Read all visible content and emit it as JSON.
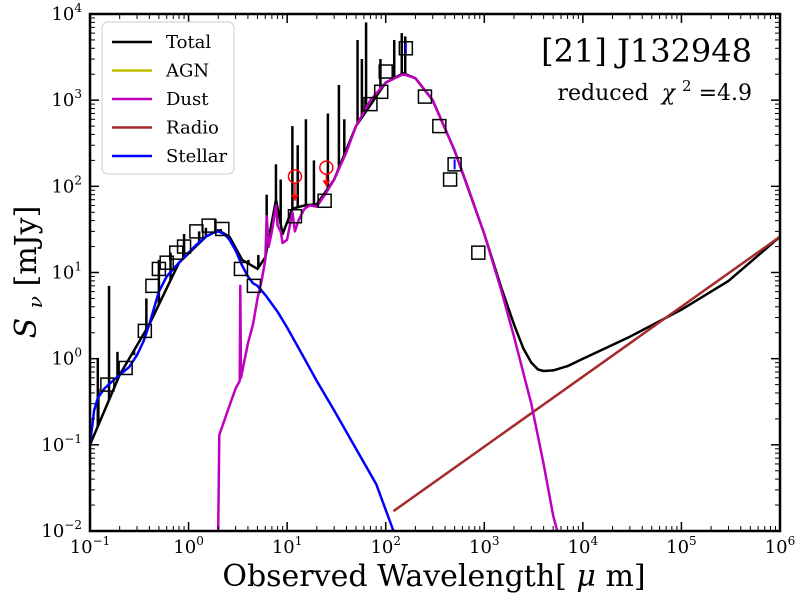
{
  "chart_data": {
    "type": "line",
    "scale": "log-log",
    "title": "[21] J132948",
    "annotation": {
      "prefix": "reduced",
      "chi": "χ",
      "power": "2",
      "value": "=4.9"
    },
    "xlabel": {
      "text": "Observed Wavelength[",
      "unit": "μ",
      "unit_rest": "m]"
    },
    "ylabel": {
      "symbol": "S",
      "sub": "ν",
      "unit": "[mJy]"
    },
    "xlim": [
      0.1,
      1000000
    ],
    "ylim": [
      0.01,
      10000
    ],
    "x_ticks": [
      {
        "value": 0.1,
        "base": "10",
        "exp": "−1"
      },
      {
        "value": 1,
        "base": "10",
        "exp": "0"
      },
      {
        "value": 10,
        "base": "10",
        "exp": "1"
      },
      {
        "value": 100,
        "base": "10",
        "exp": "2"
      },
      {
        "value": 1000,
        "base": "10",
        "exp": "3"
      },
      {
        "value": 10000,
        "base": "10",
        "exp": "4"
      },
      {
        "value": 100000,
        "base": "10",
        "exp": "5"
      },
      {
        "value": 1000000,
        "base": "10",
        "exp": "6"
      }
    ],
    "y_ticks": [
      {
        "value": 0.01,
        "base": "10",
        "exp": "−2"
      },
      {
        "value": 0.1,
        "base": "10",
        "exp": "−1"
      },
      {
        "value": 1,
        "base": "10",
        "exp": "0"
      },
      {
        "value": 10,
        "base": "10",
        "exp": "1"
      },
      {
        "value": 100,
        "base": "10",
        "exp": "2"
      },
      {
        "value": 1000,
        "base": "10",
        "exp": "3"
      },
      {
        "value": 10000,
        "base": "10",
        "exp": "4"
      }
    ],
    "legend": {
      "position": "top-left",
      "entries": [
        {
          "label": "Total",
          "color": "#000000"
        },
        {
          "label": "AGN",
          "color": "#bfbf00"
        },
        {
          "label": "Dust",
          "color": "#bf00bf"
        },
        {
          "label": "Radio",
          "color": "#a52a2a"
        },
        {
          "label": "Stellar",
          "color": "#0000ff"
        }
      ]
    },
    "series": [
      {
        "name": "Stellar",
        "color": "#0000ff",
        "points": [
          [
            0.1,
            0.1
          ],
          [
            0.11,
            0.25
          ],
          [
            0.12,
            0.35
          ],
          [
            0.14,
            0.45
          ],
          [
            0.17,
            0.55
          ],
          [
            0.2,
            0.65
          ],
          [
            0.25,
            0.8
          ],
          [
            0.3,
            1.1
          ],
          [
            0.35,
            1.6
          ],
          [
            0.4,
            2.5
          ],
          [
            0.45,
            4
          ],
          [
            0.5,
            6
          ],
          [
            0.6,
            9
          ],
          [
            0.7,
            11
          ],
          [
            0.8,
            13
          ],
          [
            1.0,
            17
          ],
          [
            1.2,
            21
          ],
          [
            1.5,
            26
          ],
          [
            1.8,
            29
          ],
          [
            2.0,
            30
          ],
          [
            2.3,
            28
          ],
          [
            2.6,
            24
          ],
          [
            3.0,
            18
          ],
          [
            3.5,
            12
          ],
          [
            4.0,
            9
          ],
          [
            4.5,
            7.5
          ],
          [
            5.0,
            7
          ],
          [
            6.0,
            5.5
          ],
          [
            8.0,
            3.5
          ],
          [
            10.0,
            2.3
          ],
          [
            15.0,
            1.0
          ],
          [
            20.0,
            0.55
          ],
          [
            30.0,
            0.25
          ],
          [
            50.0,
            0.09
          ],
          [
            80.0,
            0.035
          ],
          [
            120.0,
            0.01
          ]
        ]
      },
      {
        "name": "Dust",
        "color": "#bf00bf",
        "points": [
          [
            2.0,
            0.01
          ],
          [
            2.05,
            0.13
          ],
          [
            2.5,
            0.25
          ],
          [
            3.0,
            0.45
          ],
          [
            3.3,
            0.55
          ],
          [
            3.35,
            7
          ],
          [
            3.4,
            0.6
          ],
          [
            4.0,
            1.5
          ],
          [
            4.5,
            2.5
          ],
          [
            5.0,
            5
          ],
          [
            5.5,
            8
          ],
          [
            6.0,
            14
          ],
          [
            6.2,
            45
          ],
          [
            6.5,
            20
          ],
          [
            7.0,
            30
          ],
          [
            7.7,
            60
          ],
          [
            8.0,
            35
          ],
          [
            8.6,
            30
          ],
          [
            9.0,
            22
          ],
          [
            10.0,
            24
          ],
          [
            11.3,
            50
          ],
          [
            12.0,
            30
          ],
          [
            13.0,
            40
          ],
          [
            15.0,
            55
          ],
          [
            17.0,
            60
          ],
          [
            20.0,
            58
          ],
          [
            25.0,
            85
          ],
          [
            30.0,
            120
          ],
          [
            40.0,
            250
          ],
          [
            50.0,
            500
          ],
          [
            70.0,
            1000
          ],
          [
            100.0,
            1600
          ],
          [
            150.0,
            2000
          ],
          [
            200.0,
            1800
          ],
          [
            300.0,
            1000
          ],
          [
            500.0,
            260
          ],
          [
            700.0,
            90
          ],
          [
            1000.0,
            28
          ],
          [
            1500.0,
            6
          ],
          [
            2000.0,
            1.8
          ],
          [
            3000.0,
            0.3
          ],
          [
            4000.0,
            0.06
          ],
          [
            5000.0,
            0.015
          ],
          [
            5500.0,
            0.01
          ]
        ]
      },
      {
        "name": "Radio",
        "color": "#a52a2a",
        "points": [
          [
            120.0,
            0.017
          ],
          [
            1000000.0,
            26
          ]
        ]
      },
      {
        "name": "Total",
        "color": "#000000",
        "points": [
          [
            0.1,
            0.1
          ],
          [
            0.2,
            0.65
          ],
          [
            0.4,
            2.5
          ],
          [
            0.8,
            13
          ],
          [
            1.5,
            26
          ],
          [
            2.0,
            31
          ],
          [
            2.6,
            26
          ],
          [
            3.5,
            14
          ],
          [
            5.0,
            11
          ],
          [
            6.0,
            15
          ],
          [
            7.7,
            70
          ],
          [
            9.0,
            28
          ],
          [
            11.3,
            55
          ],
          [
            15.0,
            60
          ],
          [
            20.0,
            62
          ],
          [
            30.0,
            120
          ],
          [
            50.0,
            500
          ],
          [
            100.0,
            1600
          ],
          [
            150.0,
            2050
          ],
          [
            200.0,
            1800
          ],
          [
            300.0,
            1000
          ],
          [
            500.0,
            260
          ],
          [
            1000.0,
            28
          ],
          [
            1500.0,
            6.5
          ],
          [
            2000.0,
            2.5
          ],
          [
            2500.0,
            1.3
          ],
          [
            3000.0,
            0.9
          ],
          [
            3500.0,
            0.75
          ],
          [
            4000.0,
            0.72
          ],
          [
            5000.0,
            0.73
          ],
          [
            7000.0,
            0.82
          ],
          [
            10000.0,
            1.0
          ],
          [
            30000.0,
            1.8
          ],
          [
            100000.0,
            3.7
          ],
          [
            300000.0,
            8
          ],
          [
            1000000.0,
            26
          ]
        ]
      }
    ],
    "emission_lines": [
      {
        "x": 0.12,
        "ytop": 1.0
      },
      {
        "x": 0.1216,
        "ytop": 0.45
      },
      {
        "x": 0.156,
        "ytop": 7.0
      },
      {
        "x": 0.19,
        "ytop": 1.2
      },
      {
        "x": 0.28,
        "ytop": 1.1
      },
      {
        "x": 0.373,
        "ytop": 5.0
      },
      {
        "x": 0.5,
        "ytop": 14
      },
      {
        "x": 0.656,
        "ytop": 17
      },
      {
        "x": 0.9,
        "ytop": 28
      },
      {
        "x": 1.28,
        "ytop": 30
      },
      {
        "x": 1.5,
        "ytop": 33
      },
      {
        "x": 1.87,
        "ytop": 42
      },
      {
        "x": 2.12,
        "ytop": 32
      },
      {
        "x": 2.8,
        "ytop": 22
      },
      {
        "x": 3.3,
        "ytop": 14
      },
      {
        "x": 4.05,
        "ytop": 14
      },
      {
        "x": 5.1,
        "ytop": 16
      },
      {
        "x": 6.2,
        "ytop": 80
      },
      {
        "x": 7.7,
        "ytop": 180
      },
      {
        "x": 8.6,
        "ytop": 120
      },
      {
        "x": 11.3,
        "ytop": 500
      },
      {
        "x": 12.8,
        "ytop": 300
      },
      {
        "x": 15.5,
        "ytop": 600
      },
      {
        "x": 18.7,
        "ytop": 200
      },
      {
        "x": 25.9,
        "ytop": 700
      },
      {
        "x": 33.5,
        "ytop": 1500
      },
      {
        "x": 38.0,
        "ytop": 600
      },
      {
        "x": 51.8,
        "ytop": 5000
      },
      {
        "x": 57.3,
        "ytop": 3000
      },
      {
        "x": 63.2,
        "ytop": 8000
      },
      {
        "x": 88.4,
        "ytop": 3000
      },
      {
        "x": 122.0,
        "ytop": 5000
      },
      {
        "x": 145.5,
        "ytop": 6000
      },
      {
        "x": 157.7,
        "ytop": 5500
      }
    ],
    "observations": [
      {
        "x": 0.15,
        "y": 0.5
      },
      {
        "x": 0.23,
        "y": 0.78
      },
      {
        "x": 0.36,
        "y": 2.1
      },
      {
        "x": 0.43,
        "y": 7.0
      },
      {
        "x": 0.5,
        "y": 11.0
      },
      {
        "x": 0.6,
        "y": 13.0
      },
      {
        "x": 0.75,
        "y": 17.0
      },
      {
        "x": 0.9,
        "y": 20.0
      },
      {
        "x": 1.2,
        "y": 30.0
      },
      {
        "x": 1.6,
        "y": 35.0
      },
      {
        "x": 2.2,
        "y": 32.0
      },
      {
        "x": 3.4,
        "y": 11.0
      },
      {
        "x": 4.6,
        "y": 7.0
      },
      {
        "x": 12.0,
        "y": 45.0
      },
      {
        "x": 24.0,
        "y": 68.0
      },
      {
        "x": 70.0,
        "y": 900.0
      },
      {
        "x": 90.0,
        "y": 1250.0
      },
      {
        "x": 100.0,
        "y": 2150.0
      },
      {
        "x": 160.0,
        "y": 4000.0
      },
      {
        "x": 250.0,
        "y": 1100.0
      },
      {
        "x": 350.0,
        "y": 500.0
      },
      {
        "x": 450.0,
        "y": 120.0
      },
      {
        "x": 500.0,
        "y": 180.0
      },
      {
        "x": 870.0,
        "y": 17.0
      }
    ],
    "upper_limits": [
      {
        "x": 12.0,
        "y": 130.0,
        "arrow_to": 68.0
      },
      {
        "x": 25.0,
        "y": 165.0,
        "arrow_to": 100.0
      }
    ],
    "obs_errorbars_blue": [
      {
        "x": 160.0,
        "y": 4000.0
      },
      {
        "x": 500.0,
        "y": 180.0
      }
    ]
  }
}
